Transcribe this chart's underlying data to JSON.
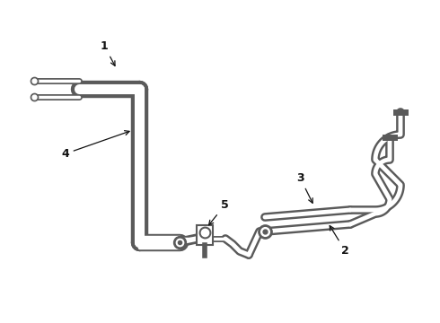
{
  "bg": "#ffffff",
  "lc": "#5a5a5a",
  "fig_w": 4.9,
  "fig_h": 3.6,
  "dpi": 100,
  "xlim": [
    0,
    490
  ],
  "ylim": [
    0,
    360
  ]
}
